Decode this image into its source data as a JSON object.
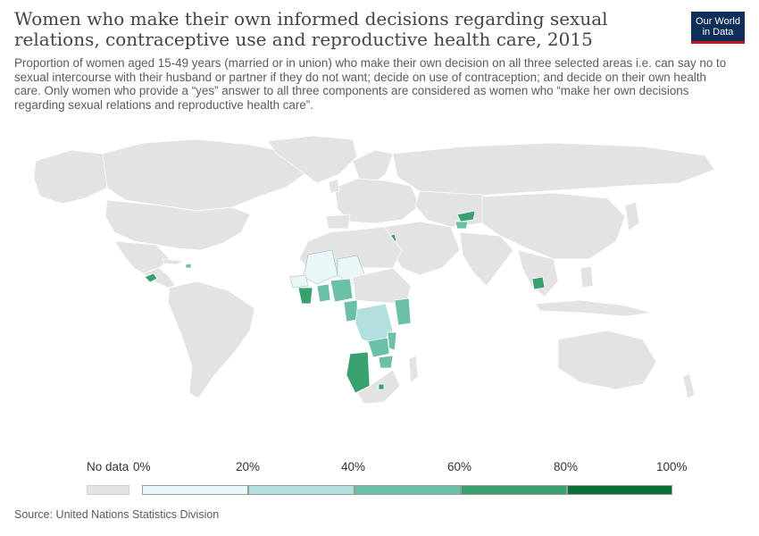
{
  "title": "Women who make their own informed decisions regarding sexual relations, contraceptive use and reproductive health care, 2015",
  "subtitle": "Proportion of women aged 15-49 years (married or in union) who make their own decision on all three selected areas i.e. can say no to sexual intercourse with their husband or partner if they do not want; decide on use of contraception; and decide on their own health care. Only women who provide a “yes” answer to all three components are considered as women who “make her own decisions regarding sexual relations and reproductive health care”.",
  "logo": {
    "line1": "Our World",
    "line2": "in Data"
  },
  "legend": {
    "nodata_label": "No data",
    "ticks": [
      "0%",
      "20%",
      "40%",
      "60%",
      "80%",
      "100%"
    ],
    "bins": [
      {
        "color": "#eaf7f8"
      },
      {
        "color": "#b1e0df"
      },
      {
        "color": "#6cc0a8"
      },
      {
        "color": "#38a16e"
      },
      {
        "color": "#0b6e33"
      }
    ]
  },
  "colors": {
    "no_data": "#e3e3e3",
    "border": "#ffffff"
  },
  "source": "Source: United Nations Statistics Division"
}
